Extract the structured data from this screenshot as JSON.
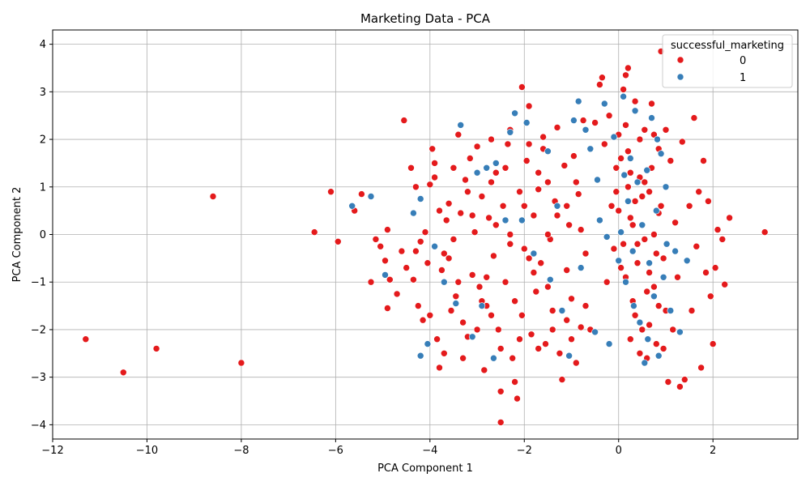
{
  "chart_data": {
    "type": "scatter",
    "title": "Marketing Data - PCA",
    "xlabel": "PCA Component 1",
    "ylabel": "PCA Component 2",
    "xlim": [
      -12,
      3.8
    ],
    "ylim": [
      -4.3,
      4.3
    ],
    "xticks": [
      -12,
      -10,
      -8,
      -6,
      -4,
      -2,
      0,
      2
    ],
    "yticks": [
      -4,
      -3,
      -2,
      -1,
      0,
      1,
      2,
      3,
      4
    ],
    "grid": true,
    "legend": {
      "title": "successful_marketing",
      "placement": "top-right",
      "entries": [
        {
          "label": "0",
          "color": "#e41a1c"
        },
        {
          "label": "1",
          "color": "#377eb8"
        }
      ]
    },
    "series": [
      {
        "label": "0",
        "color": "#e41a1c",
        "points": [
          [
            -11.3,
            -2.2
          ],
          [
            -10.5,
            -2.9
          ],
          [
            -9.8,
            -2.4
          ],
          [
            -8.6,
            0.8
          ],
          [
            -8.0,
            -2.7
          ],
          [
            -6.45,
            0.05
          ],
          [
            -6.1,
            0.9
          ],
          [
            -5.95,
            -0.15
          ],
          [
            -5.6,
            0.5
          ],
          [
            -5.45,
            0.85
          ],
          [
            -5.25,
            -1.0
          ],
          [
            -5.15,
            -0.1
          ],
          [
            -5.05,
            -0.25
          ],
          [
            -4.95,
            -0.55
          ],
          [
            -4.9,
            0.1
          ],
          [
            -4.85,
            -0.95
          ],
          [
            -4.9,
            -1.55
          ],
          [
            -4.7,
            -1.25
          ],
          [
            -4.6,
            -0.35
          ],
          [
            -4.55,
            2.4
          ],
          [
            -4.5,
            -0.7
          ],
          [
            -4.4,
            1.4
          ],
          [
            -4.35,
            -0.95
          ],
          [
            -4.3,
            -0.35
          ],
          [
            -4.25,
            -1.5
          ],
          [
            -4.2,
            -0.15
          ],
          [
            -4.15,
            -1.8
          ],
          [
            -4.1,
            0.05
          ],
          [
            -4.05,
            -0.6
          ],
          [
            -4.0,
            1.05
          ],
          [
            -3.95,
            1.8
          ],
          [
            -3.9,
            1.2
          ],
          [
            -3.85,
            -2.2
          ],
          [
            -3.8,
            -2.8
          ],
          [
            -3.75,
            -0.75
          ],
          [
            -3.7,
            -0.4
          ],
          [
            -3.65,
            0.3
          ],
          [
            -3.6,
            0.65
          ],
          [
            -3.55,
            -1.6
          ],
          [
            -3.5,
            -0.1
          ],
          [
            -3.45,
            -1.3
          ],
          [
            -3.4,
            2.1
          ],
          [
            -3.35,
            0.45
          ],
          [
            -3.3,
            -1.85
          ],
          [
            -3.25,
            1.15
          ],
          [
            -3.2,
            -2.15
          ],
          [
            -3.15,
            1.6
          ],
          [
            -3.1,
            -0.85
          ],
          [
            -3.05,
            0.05
          ],
          [
            -3.0,
            1.85
          ],
          [
            -2.95,
            -1.1
          ],
          [
            -2.9,
            0.8
          ],
          [
            -2.85,
            -2.85
          ],
          [
            -2.8,
            -1.5
          ],
          [
            -2.75,
            0.35
          ],
          [
            -2.7,
            2.0
          ],
          [
            -2.65,
            -0.45
          ],
          [
            -2.6,
            1.3
          ],
          [
            -2.55,
            -2.0
          ],
          [
            -2.5,
            -3.3
          ],
          [
            -2.5,
            -3.95
          ],
          [
            -2.45,
            0.6
          ],
          [
            -2.4,
            -1.0
          ],
          [
            -2.35,
            1.9
          ],
          [
            -2.3,
            -0.2
          ],
          [
            -2.25,
            -2.6
          ],
          [
            -2.2,
            -3.1
          ],
          [
            -2.15,
            -3.45
          ],
          [
            -2.1,
            0.9
          ],
          [
            -2.05,
            -1.7
          ],
          [
            -2.05,
            3.1
          ],
          [
            -2.0,
            -0.3
          ],
          [
            -1.95,
            1.55
          ],
          [
            -1.9,
            2.7
          ],
          [
            -1.85,
            -2.1
          ],
          [
            -1.8,
            0.4
          ],
          [
            -1.75,
            -1.2
          ],
          [
            -1.7,
            0.95
          ],
          [
            -1.65,
            -0.6
          ],
          [
            -1.6,
            2.05
          ],
          [
            -1.55,
            -2.3
          ],
          [
            -1.5,
            1.1
          ],
          [
            -1.45,
            -0.1
          ],
          [
            -1.4,
            -1.6
          ],
          [
            -1.35,
            0.7
          ],
          [
            -1.3,
            2.25
          ],
          [
            -1.25,
            -2.5
          ],
          [
            -1.2,
            -3.05
          ],
          [
            -1.15,
            1.45
          ],
          [
            -1.1,
            -0.75
          ],
          [
            -1.05,
            0.2
          ],
          [
            -1.0,
            -1.35
          ],
          [
            -0.95,
            1.65
          ],
          [
            -0.9,
            -2.7
          ],
          [
            -0.85,
            0.85
          ],
          [
            -0.8,
            -1.95
          ],
          [
            -0.75,
            2.4
          ],
          [
            -0.7,
            -0.4
          ],
          [
            -0.6,
            -2.0
          ],
          [
            -0.5,
            2.35
          ],
          [
            -0.4,
            3.15
          ],
          [
            -0.35,
            3.3
          ],
          [
            -0.3,
            1.9
          ],
          [
            -0.25,
            -1.0
          ],
          [
            -0.2,
            2.5
          ],
          [
            -0.15,
            0.6
          ],
          [
            -0.1,
            -0.3
          ],
          [
            -0.05,
            1.4
          ],
          [
            0.0,
            2.1
          ],
          [
            0.05,
            -0.7
          ],
          [
            0.1,
            3.05
          ],
          [
            0.15,
            3.35
          ],
          [
            0.2,
            3.5
          ],
          [
            0.2,
            1.75
          ],
          [
            0.25,
            0.35
          ],
          [
            0.3,
            -1.4
          ],
          [
            0.35,
            2.8
          ],
          [
            0.4,
            -0.2
          ],
          [
            0.45,
            1.2
          ],
          [
            0.5,
            -2.0
          ],
          [
            0.55,
            2.2
          ],
          [
            0.6,
            -2.6
          ],
          [
            0.65,
            0.9
          ],
          [
            0.7,
            2.75
          ],
          [
            0.75,
            -1.1
          ],
          [
            0.8,
            -2.3
          ],
          [
            0.85,
            0.45
          ],
          [
            0.9,
            3.85
          ],
          [
            0.95,
            -0.5
          ],
          [
            1.0,
            2.2
          ],
          [
            1.05,
            -3.1
          ],
          [
            1.1,
            1.55
          ],
          [
            1.15,
            -2.0
          ],
          [
            1.2,
            0.25
          ],
          [
            1.25,
            -0.9
          ],
          [
            1.3,
            -3.2
          ],
          [
            1.35,
            1.95
          ],
          [
            1.4,
            -3.05
          ],
          [
            1.5,
            0.6
          ],
          [
            1.55,
            -1.6
          ],
          [
            1.6,
            2.45
          ],
          [
            1.65,
            -0.25
          ],
          [
            1.7,
            0.9
          ],
          [
            1.75,
            -2.8
          ],
          [
            1.8,
            1.55
          ],
          [
            1.85,
            -0.8
          ],
          [
            1.9,
            0.7
          ],
          [
            1.95,
            -1.3
          ],
          [
            2.0,
            -2.3
          ],
          [
            2.05,
            -0.7
          ],
          [
            2.1,
            0.1
          ],
          [
            2.2,
            -0.1
          ],
          [
            2.25,
            -1.05
          ],
          [
            2.35,
            0.35
          ],
          [
            3.1,
            0.05
          ],
          [
            0.0,
            0.5
          ],
          [
            0.1,
            -0.2
          ],
          [
            0.2,
            1.0
          ],
          [
            0.3,
            0.2
          ],
          [
            0.4,
            -0.6
          ],
          [
            0.5,
            0.8
          ],
          [
            0.6,
            -1.2
          ],
          [
            0.7,
            1.4
          ],
          [
            0.8,
            -0.4
          ],
          [
            0.9,
            0.6
          ],
          [
            1.0,
            -1.6
          ],
          [
            0.15,
            -0.9
          ],
          [
            0.25,
            1.3
          ],
          [
            0.35,
            -1.7
          ],
          [
            0.45,
            2.0
          ],
          [
            0.55,
            -0.1
          ],
          [
            0.65,
            -1.9
          ],
          [
            0.75,
            0.0
          ],
          [
            0.85,
            1.8
          ],
          [
            0.95,
            -2.4
          ],
          [
            -0.05,
            0.9
          ],
          [
            0.05,
            1.6
          ],
          [
            0.15,
            2.3
          ],
          [
            0.25,
            -2.2
          ],
          [
            0.35,
            0.7
          ],
          [
            0.45,
            -2.5
          ],
          [
            0.55,
            1.1
          ],
          [
            0.65,
            -0.8
          ],
          [
            0.75,
            2.1
          ],
          [
            0.85,
            -1.5
          ],
          [
            -3.6,
            -0.5
          ],
          [
            -3.2,
            0.9
          ],
          [
            -2.8,
            -0.9
          ],
          [
            -2.6,
            0.2
          ],
          [
            -2.4,
            1.4
          ],
          [
            -2.2,
            -1.4
          ],
          [
            -2.0,
            0.6
          ],
          [
            -1.8,
            -0.8
          ],
          [
            -1.6,
            1.8
          ],
          [
            -1.4,
            -2.0
          ],
          [
            -3.0,
            -2.0
          ],
          [
            -2.7,
            -1.7
          ],
          [
            -2.3,
            0.0
          ],
          [
            -1.9,
            -0.5
          ],
          [
            -1.7,
            1.3
          ],
          [
            -1.3,
            0.4
          ],
          [
            -1.1,
            -1.8
          ],
          [
            -0.9,
            1.1
          ],
          [
            -3.8,
            0.5
          ],
          [
            -3.4,
            -1.0
          ],
          [
            -4.0,
            -1.7
          ],
          [
            -3.7,
            -2.5
          ],
          [
            -3.3,
            -2.6
          ],
          [
            -2.9,
            -1.4
          ],
          [
            -2.5,
            -2.4
          ],
          [
            -2.1,
            -2.2
          ],
          [
            -1.7,
            -2.4
          ],
          [
            -1.5,
            -1.1
          ],
          [
            -1.0,
            -2.2
          ],
          [
            -0.7,
            -1.5
          ],
          [
            -4.3,
            1.0
          ],
          [
            -3.9,
            1.5
          ],
          [
            -3.5,
            1.4
          ],
          [
            -3.1,
            0.4
          ],
          [
            -2.7,
            1.1
          ],
          [
            -2.3,
            2.2
          ],
          [
            -1.9,
            1.9
          ],
          [
            -1.5,
            0.0
          ],
          [
            -1.1,
            0.6
          ],
          [
            -0.8,
            0.1
          ]
        ]
      },
      {
        "label": "1",
        "color": "#377eb8",
        "points": [
          [
            -5.65,
            0.6
          ],
          [
            -5.25,
            0.8
          ],
          [
            -4.95,
            -0.85
          ],
          [
            -4.35,
            0.45
          ],
          [
            -4.2,
            -2.55
          ],
          [
            -4.2,
            0.75
          ],
          [
            -4.05,
            -2.3
          ],
          [
            -3.9,
            -0.25
          ],
          [
            -3.7,
            -1.0
          ],
          [
            -3.45,
            -1.45
          ],
          [
            -3.35,
            2.3
          ],
          [
            -3.1,
            -2.15
          ],
          [
            -3.0,
            1.3
          ],
          [
            -2.9,
            -1.5
          ],
          [
            -2.8,
            1.4
          ],
          [
            -2.65,
            -2.6
          ],
          [
            -2.6,
            1.5
          ],
          [
            -2.4,
            0.3
          ],
          [
            -2.3,
            2.15
          ],
          [
            -2.2,
            2.55
          ],
          [
            -2.05,
            0.3
          ],
          [
            -1.95,
            2.35
          ],
          [
            -1.8,
            -0.4
          ],
          [
            -1.5,
            1.75
          ],
          [
            -1.45,
            -0.95
          ],
          [
            -1.3,
            0.6
          ],
          [
            -1.2,
            -1.6
          ],
          [
            -1.05,
            -2.55
          ],
          [
            -0.95,
            2.4
          ],
          [
            -0.85,
            2.8
          ],
          [
            -0.8,
            -0.7
          ],
          [
            -0.7,
            2.2
          ],
          [
            -0.6,
            1.8
          ],
          [
            -0.5,
            -2.05
          ],
          [
            -0.45,
            1.15
          ],
          [
            -0.4,
            0.3
          ],
          [
            -0.3,
            2.75
          ],
          [
            -0.2,
            -2.3
          ],
          [
            -0.1,
            2.05
          ],
          [
            0.0,
            -0.55
          ],
          [
            0.1,
            2.9
          ],
          [
            0.15,
            -1.0
          ],
          [
            0.2,
            0.7
          ],
          [
            0.25,
            1.6
          ],
          [
            0.3,
            -0.35
          ],
          [
            0.35,
            2.6
          ],
          [
            0.4,
            1.1
          ],
          [
            0.45,
            -1.85
          ],
          [
            0.5,
            0.2
          ],
          [
            0.55,
            -2.7
          ],
          [
            0.6,
            1.35
          ],
          [
            0.65,
            -0.6
          ],
          [
            0.7,
            2.45
          ],
          [
            0.75,
            -1.3
          ],
          [
            0.8,
            0.5
          ],
          [
            0.85,
            -2.55
          ],
          [
            0.9,
            1.7
          ],
          [
            0.95,
            -0.9
          ],
          [
            1.0,
            1.0
          ],
          [
            1.1,
            -1.6
          ],
          [
            1.2,
            -0.35
          ],
          [
            1.3,
            -2.05
          ],
          [
            1.45,
            -0.55
          ],
          [
            -0.25,
            -0.05
          ],
          [
            0.05,
            0.05
          ],
          [
            0.12,
            1.25
          ],
          [
            0.32,
            -1.5
          ],
          [
            0.62,
            -2.2
          ],
          [
            0.82,
            2.0
          ],
          [
            1.02,
            -0.2
          ]
        ]
      }
    ]
  }
}
